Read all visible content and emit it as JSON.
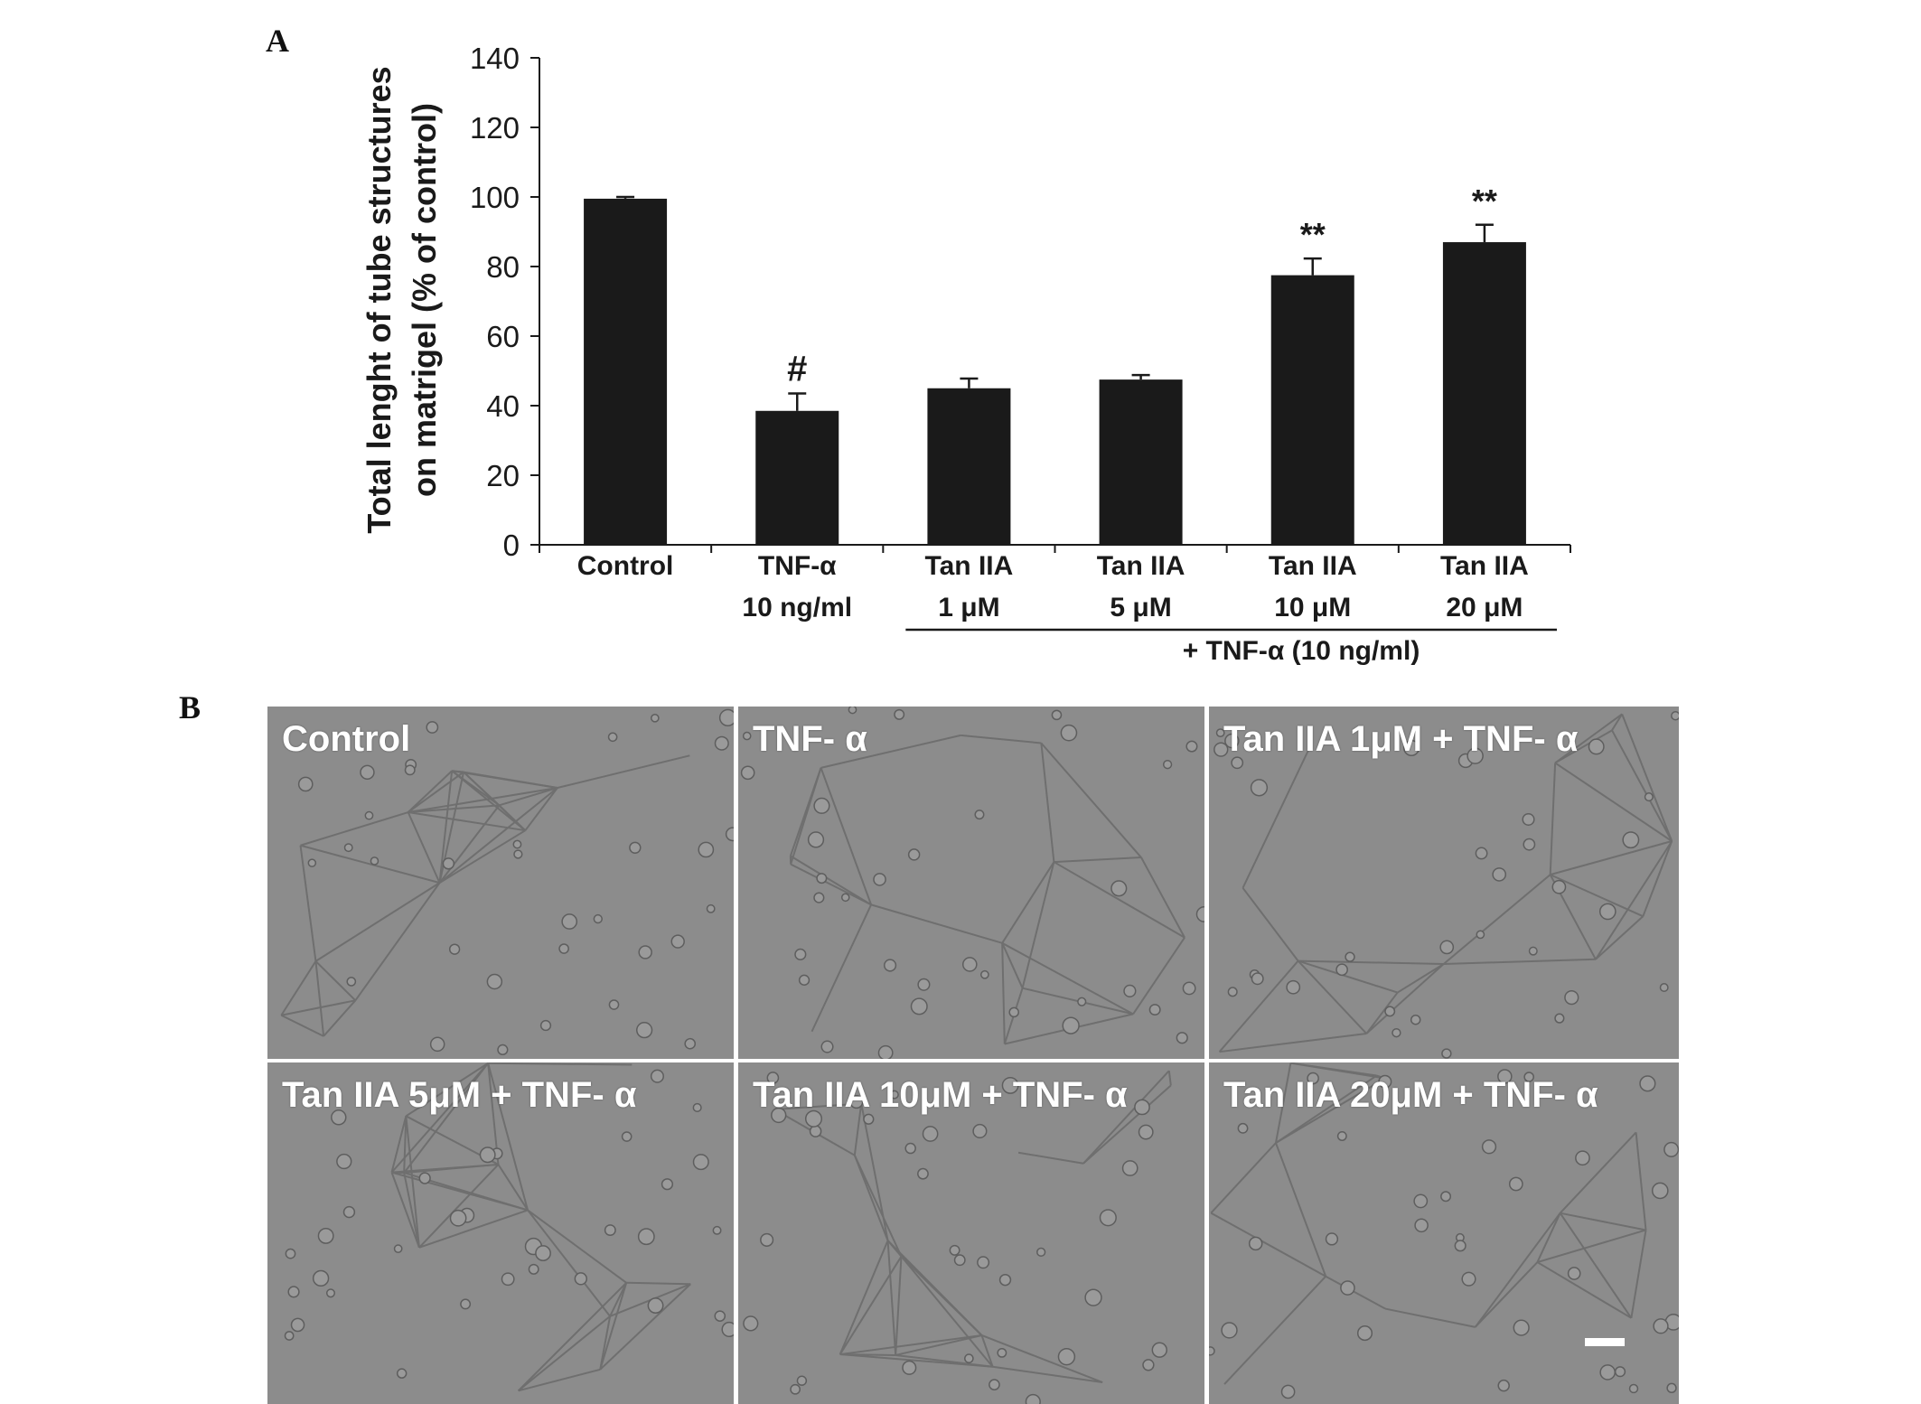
{
  "panels": {
    "a_letter": "A",
    "b_letter": "B"
  },
  "chart_data": {
    "type": "bar",
    "title": "",
    "ylabel_line1": "Total lenght of tube structures",
    "ylabel_line2": "on matrigel (% of control)",
    "xlabel": "",
    "ylim": [
      0,
      140
    ],
    "yticks": [
      0,
      20,
      40,
      60,
      80,
      100,
      120,
      140
    ],
    "grid": false,
    "bar_color": "#1a1a1a",
    "categories": [
      {
        "line1": "Control",
        "line2": ""
      },
      {
        "line1": "TNF-α",
        "line2": "10 ng/ml"
      },
      {
        "line1": "Tan IIA",
        "line2": "1 μM"
      },
      {
        "line1": "Tan IIA",
        "line2": "5 μM"
      },
      {
        "line1": "Tan IIA",
        "line2": "10 μM"
      },
      {
        "line1": "Tan IIA",
        "line2": "20 μM"
      }
    ],
    "values": [
      99.5,
      38.5,
      45,
      47.5,
      77.5,
      87
    ],
    "errors": [
      0.5,
      5,
      2.8,
      1.3,
      4.8,
      5
    ],
    "annotations": [
      "",
      "#",
      "",
      "",
      "**",
      "**"
    ],
    "group_label": "+ TNF-α (10 ng/ml)",
    "group_range": [
      2,
      5
    ]
  },
  "micrographs": {
    "bg_color": "#8c8c8c",
    "label_color": "#ffffff",
    "items": [
      {
        "label": "Control"
      },
      {
        "label": "TNF- α"
      },
      {
        "label": "Tan IIA 1μM + TNF- α"
      },
      {
        "label": "Tan IIA 5μM + TNF- α"
      },
      {
        "label": "Tan IIA 10μM + TNF- α"
      },
      {
        "label": "Tan IIA 20μM + TNF- α"
      }
    ]
  }
}
